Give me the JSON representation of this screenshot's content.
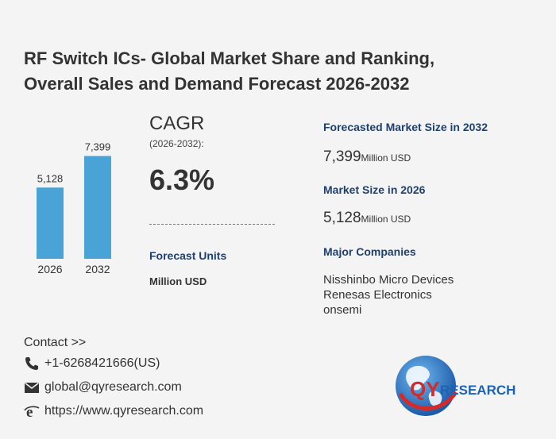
{
  "title": {
    "line1": "RF Switch ICs- Global Market Share and Ranking,",
    "line2": "Overall Sales and Demand Forecast 2026-2032"
  },
  "chart_data": {
    "type": "bar",
    "categories": [
      "2026",
      "2032"
    ],
    "values": [
      5128,
      7399
    ],
    "value_labels": [
      "5,128",
      "7,399"
    ],
    "title": "",
    "xlabel": "",
    "ylabel": "",
    "ylim": [
      0,
      8000
    ],
    "grid": false,
    "color": "#4aa3d6"
  },
  "cagr": {
    "label": "CAGR",
    "period": "(2026-2032):",
    "value": "6.3%"
  },
  "forecast_units": {
    "label": "Forecast Units",
    "value": "Million USD"
  },
  "market": {
    "forecast_2032_label": "Forecasted Market Size in 2032",
    "forecast_2032_value": "7,399",
    "forecast_2032_unit": "Million USD",
    "size_2026_label": "Market Size in 2026",
    "size_2026_value": "5,128",
    "size_2026_unit": "Million USD"
  },
  "companies": {
    "label": "Major Companies",
    "items": [
      "Nisshinbo Micro Devices",
      "Renesas Electronics",
      "onsemi"
    ]
  },
  "contact": {
    "label": "Contact >>",
    "phone": "+1-6268421666(US)",
    "email": "global@qyresearch.com",
    "website": "https://www.qyresearch.com"
  },
  "logo": {
    "text_qy": "QY",
    "text_research": "RESEARCH"
  },
  "colors": {
    "heading_blue": "#1f3f6e",
    "bar_blue": "#4aa3d6",
    "logo_red": "#d62a2a",
    "logo_blue": "#1c63b4"
  }
}
